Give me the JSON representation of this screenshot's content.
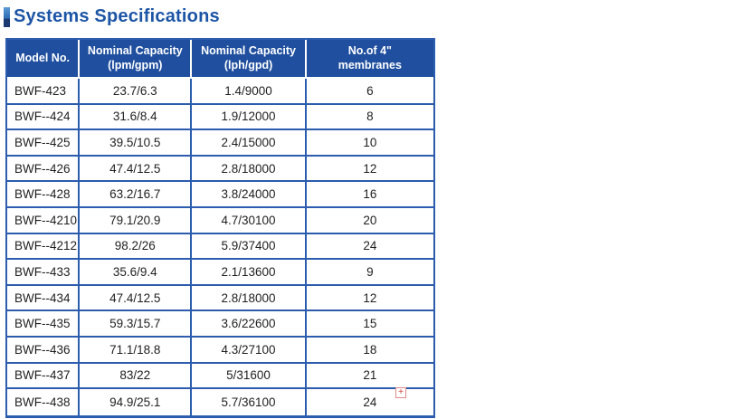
{
  "page": {
    "title": "Systems Specifications"
  },
  "colors": {
    "header_bg": "#1f4f9e",
    "border_blue": "#2b5cae",
    "title_blue": "#1c55a6",
    "cell_text": "#1f1f1f",
    "bar_top": "#5b9bd5",
    "bar_mid": "#2e6db4",
    "bar_bottom": "#1b3a72",
    "broken_icon_red": "#cc3b3b"
  },
  "table": {
    "columns": [
      {
        "line1": "Model No.",
        "line2": ""
      },
      {
        "line1": "Nominal Capacity",
        "line2": "(lpm/gpm)"
      },
      {
        "line1": "Nominal Capacity",
        "line2": "(lph/gpd)"
      },
      {
        "line1": "No.of 4\"",
        "line2": "membranes"
      }
    ],
    "rows": [
      {
        "model": "BWF-423",
        "lpm_gpm": "23.7/6.3",
        "lph_gpd": "1.4/9000",
        "membranes": "6"
      },
      {
        "model": "BWF--424",
        "lpm_gpm": "31.6/8.4",
        "lph_gpd": "1.9/12000",
        "membranes": "8"
      },
      {
        "model": "BWF--425",
        "lpm_gpm": "39.5/10.5",
        "lph_gpd": "2.4/15000",
        "membranes": "10"
      },
      {
        "model": "BWF--426",
        "lpm_gpm": "47.4/12.5",
        "lph_gpd": "2.8/18000",
        "membranes": "12"
      },
      {
        "model": "BWF--428",
        "lpm_gpm": "63.2/16.7",
        "lph_gpd": "3.8/24000",
        "membranes": "16"
      },
      {
        "model": "BWF--4210",
        "lpm_gpm": "79.1/20.9",
        "lph_gpd": "4.7/30100",
        "membranes": "20"
      },
      {
        "model": "BWF--4212",
        "lpm_gpm": "98.2/26",
        "lph_gpd": "5.9/37400",
        "membranes": "24"
      },
      {
        "model": "BWF--433",
        "lpm_gpm": "35.6/9.4",
        "lph_gpd": "2.1/13600",
        "membranes": "9"
      },
      {
        "model": "BWF--434",
        "lpm_gpm": "47.4/12.5",
        "lph_gpd": "2.8/18000",
        "membranes": "12"
      },
      {
        "model": "BWF--435",
        "lpm_gpm": "59.3/15.7",
        "lph_gpd": "3.6/22600",
        "membranes": "15"
      },
      {
        "model": "BWF--436",
        "lpm_gpm": "71.1/18.8",
        "lph_gpd": "4.3/27100",
        "membranes": "18"
      },
      {
        "model": "BWF--437",
        "lpm_gpm": "83/22",
        "lph_gpd": "5/31600",
        "membranes": "21"
      },
      {
        "model": "BWF--438",
        "lpm_gpm": "94.9/25.1",
        "lph_gpd": "5.7/36100",
        "membranes": "24"
      }
    ]
  },
  "misc": {
    "broken_image_symbol": "+"
  }
}
